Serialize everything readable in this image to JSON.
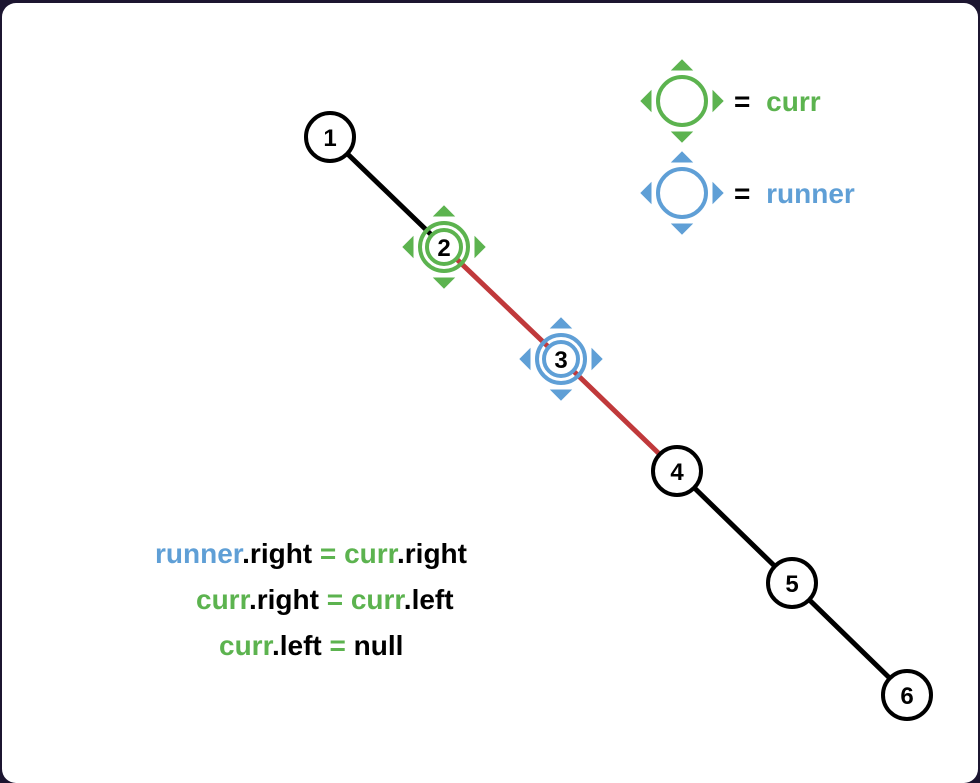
{
  "colors": {
    "curr": "#5cb34f",
    "runner": "#5f9fd6",
    "edge_default": "#000000",
    "edge_highlight": "#c0393b",
    "node_fill": "#ffffff",
    "node_stroke": "#000000"
  },
  "nodes": [
    {
      "id": "n1",
      "label": "1",
      "marker": null
    },
    {
      "id": "n2",
      "label": "2",
      "marker": "curr"
    },
    {
      "id": "n3",
      "label": "3",
      "marker": "runner"
    },
    {
      "id": "n4",
      "label": "4",
      "marker": null
    },
    {
      "id": "n5",
      "label": "5",
      "marker": null
    },
    {
      "id": "n6",
      "label": "6",
      "marker": null
    }
  ],
  "edges": [
    {
      "from": "n1",
      "to": "n2",
      "highlight": false
    },
    {
      "from": "n2",
      "to": "n3",
      "highlight": true
    },
    {
      "from": "n3",
      "to": "n4",
      "highlight": true
    },
    {
      "from": "n4",
      "to": "n5",
      "highlight": false
    },
    {
      "from": "n5",
      "to": "n6",
      "highlight": false
    }
  ],
  "legend": {
    "curr": {
      "equals": "=",
      "label": "curr"
    },
    "runner": {
      "equals": "=",
      "label": "runner"
    }
  },
  "code": {
    "line1": {
      "var1": "runner",
      "prop1": ".right",
      "op": " = ",
      "var2": "curr",
      "prop2": ".right"
    },
    "line2": {
      "var1": "curr",
      "prop1": ".right",
      "op": " = ",
      "var2": "curr",
      "prop2": ".left"
    },
    "line3": {
      "var1": "curr",
      "prop1": ".left",
      "op": " = ",
      "value": "null"
    }
  }
}
